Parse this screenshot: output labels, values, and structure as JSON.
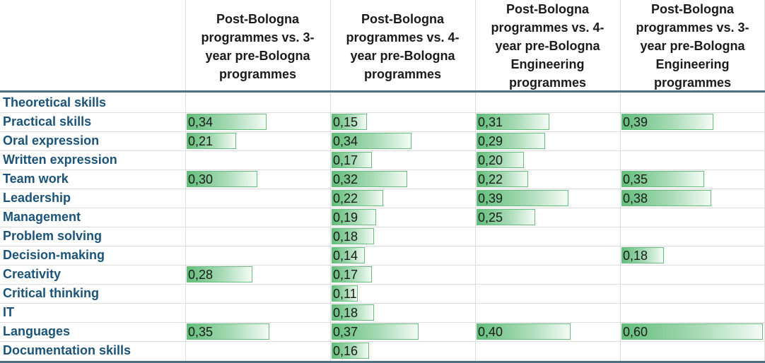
{
  "chart_data": {
    "type": "table",
    "columns": [
      "Post-Bologna programmes vs. 3-year pre-Bologna programmes",
      "Post-Bologna programmes vs. 4-year pre-Bologna programmes",
      "Post-Bologna programmes vs. 4-year pre-Bologna Engineering programmes",
      "Post-Bologna programmes vs. 3-year pre-Bologna Engineering programmes"
    ],
    "rows": [
      {
        "label": "Theoretical skills",
        "values": [
          null,
          null,
          null,
          null
        ]
      },
      {
        "label": "Practical skills",
        "values": [
          0.34,
          0.15,
          0.31,
          0.39
        ]
      },
      {
        "label": "Oral expression",
        "values": [
          0.21,
          0.34,
          0.29,
          null
        ]
      },
      {
        "label": "Written expression",
        "values": [
          null,
          0.17,
          0.2,
          null
        ]
      },
      {
        "label": "Team work",
        "values": [
          0.3,
          0.32,
          0.22,
          0.35
        ]
      },
      {
        "label": "Leadership",
        "values": [
          null,
          0.22,
          0.39,
          0.38
        ]
      },
      {
        "label": "Management",
        "values": [
          null,
          0.19,
          0.25,
          null
        ]
      },
      {
        "label": "Problem solving",
        "values": [
          null,
          0.18,
          null,
          null
        ]
      },
      {
        "label": "Decision-making",
        "values": [
          null,
          0.14,
          null,
          0.18
        ]
      },
      {
        "label": "Creativity",
        "values": [
          0.28,
          0.17,
          null,
          null
        ]
      },
      {
        "label": "Critical thinking",
        "values": [
          null,
          0.11,
          null,
          null
        ]
      },
      {
        "label": "IT",
        "values": [
          null,
          0.18,
          null,
          null
        ]
      },
      {
        "label": "Languages",
        "values": [
          0.35,
          0.37,
          0.4,
          0.6
        ]
      },
      {
        "label": "Documentation skills",
        "values": [
          null,
          0.16,
          null,
          null
        ]
      }
    ],
    "data_bar_max": 0.6,
    "bar_color": "#63be7b",
    "decimal_separator": ","
  }
}
